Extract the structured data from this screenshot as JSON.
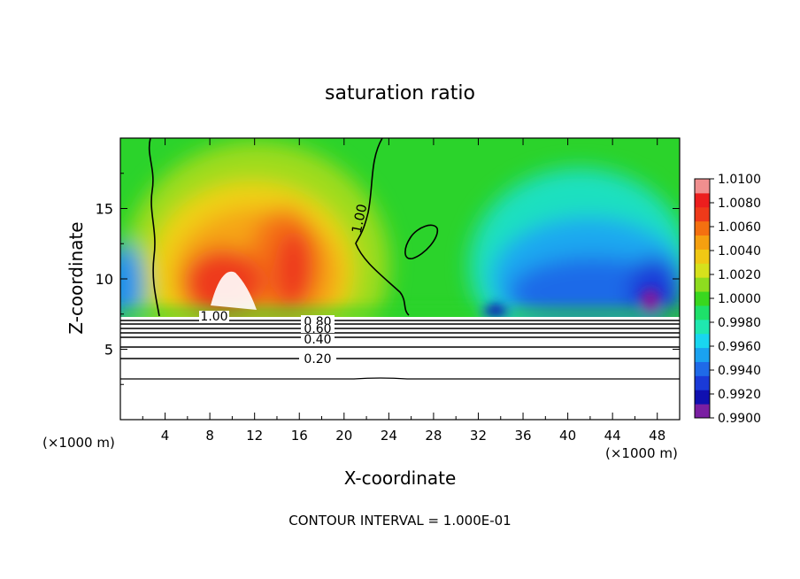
{
  "chart_data": {
    "type": "heatmap",
    "title": "saturation ratio",
    "xlabel": "X-coordinate",
    "ylabel": "Z-coordinate",
    "x_unit_left": "(×1000 m)",
    "x_unit_right": "(×1000 m)",
    "xlim": [
      0,
      50
    ],
    "ylim": [
      0,
      20
    ],
    "xticks": [
      4,
      8,
      12,
      16,
      20,
      24,
      28,
      32,
      36,
      40,
      44,
      48
    ],
    "yticks": [
      5,
      10,
      15
    ],
    "footer": "CONTOUR INTERVAL = 1.000E-01",
    "colorbar": {
      "min": 0.99,
      "max": 1.01,
      "labels": [
        "1.0100",
        "1.0080",
        "1.0060",
        "1.0040",
        "1.0020",
        "1.0000",
        "0.9980",
        "0.9960",
        "0.9940",
        "0.9920",
        "0.9900"
      ],
      "colors": [
        "#7a1fa2",
        "#1010b0",
        "#1a3ad8",
        "#1f6ae8",
        "#1aa2f0",
        "#19d6f0",
        "#1fe8b0",
        "#1ee06a",
        "#39d71f",
        "#8edc1f",
        "#d6e11c",
        "#f0c814",
        "#f5a010",
        "#f47010",
        "#ee3a1a",
        "#ec1e1e",
        "#f08f8f"
      ]
    },
    "contours": {
      "interval": 0.1,
      "labels": [
        "1.00",
        "1.00",
        "0.80",
        "0.60",
        "0.40",
        "0.20"
      ]
    }
  }
}
